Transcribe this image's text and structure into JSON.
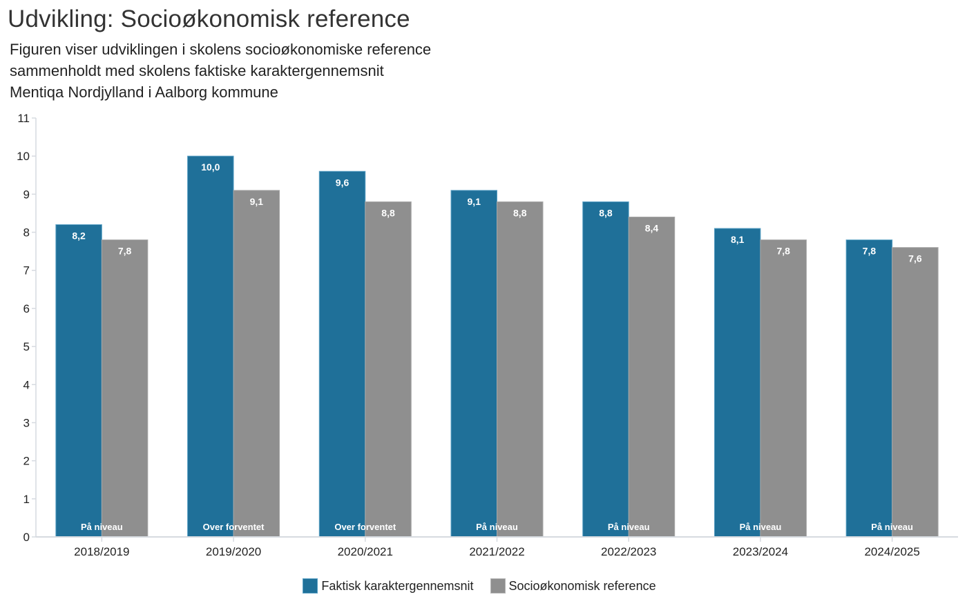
{
  "header": {
    "title": "Udvikling: Socioøkonomisk reference",
    "subtitle_lines": [
      "Figuren viser udviklingen i skolens socioøkonomiske reference",
      "sammenholdt med skolens faktiske karaktergennemsnit",
      "Mentiqa Nordjylland i Aalborg kommune"
    ]
  },
  "legend": {
    "items": [
      {
        "label": "Faktisk karaktergennemsnit",
        "color": "#1f7099"
      },
      {
        "label": "Socioøkonomisk reference",
        "color": "#8f8f8f"
      }
    ]
  },
  "chart_data": {
    "type": "bar",
    "title": "Udvikling: Socioøkonomisk reference",
    "subtitle": "Figuren viser udviklingen i skolens socioøkonomiske reference sammenholdt med skolens faktiske karaktergennemsnit Mentiqa Nordjylland i Aalborg kommune",
    "xlabel": "",
    "ylabel": "",
    "ylim": [
      0,
      11
    ],
    "yticks": [
      0,
      1,
      2,
      3,
      4,
      5,
      6,
      7,
      8,
      9,
      10,
      11
    ],
    "grid": false,
    "legend_position": "bottom",
    "categories": [
      "2018/2019",
      "2019/2020",
      "2020/2021",
      "2021/2022",
      "2022/2023",
      "2023/2024",
      "2024/2025"
    ],
    "series": [
      {
        "name": "Faktisk karaktergennemsnit",
        "color": "#1f7099",
        "values": [
          8.2,
          10.0,
          9.6,
          9.1,
          8.8,
          8.1,
          7.8
        ],
        "labels": [
          "8,2",
          "10,0",
          "9,6",
          "9,1",
          "8,8",
          "8,1",
          "7,8"
        ]
      },
      {
        "name": "Socioøkonomisk reference",
        "color": "#8f8f8f",
        "values": [
          7.8,
          9.1,
          8.8,
          8.8,
          8.4,
          7.8,
          7.6
        ],
        "labels": [
          "7,8",
          "9,1",
          "8,8",
          "8,8",
          "8,4",
          "7,8",
          "7,6"
        ]
      }
    ],
    "annotations": [
      "På niveau",
      "Over forventet",
      "Over forventet",
      "På niveau",
      "På niveau",
      "På niveau",
      "På niveau"
    ]
  }
}
